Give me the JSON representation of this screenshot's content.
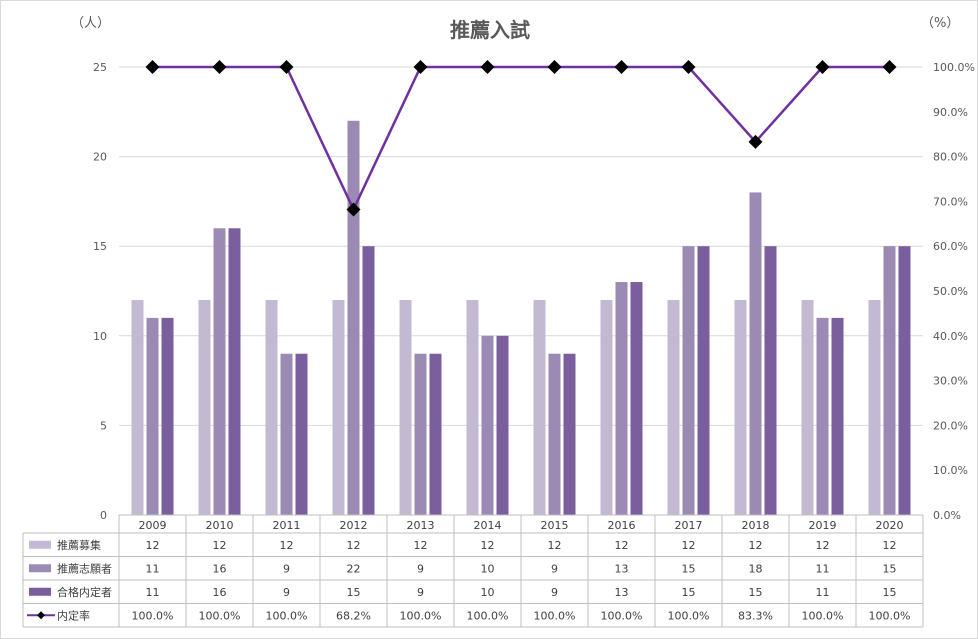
{
  "chart_data": {
    "type": "bar",
    "title": "推薦入試",
    "y_left_unit": "（人）",
    "y_right_unit": "（%）",
    "ylim": [
      0,
      25
    ],
    "y_ticks": [
      0,
      5,
      10,
      15,
      20,
      25
    ],
    "y2lim": [
      0,
      100
    ],
    "y2_ticks": [
      "0.0%",
      "10.0%",
      "20.0%",
      "30.0%",
      "40.0%",
      "50.0%",
      "60.0%",
      "70.0%",
      "80.0%",
      "90.0%",
      "100.0%"
    ],
    "categories": [
      "2009",
      "2010",
      "2011",
      "2012",
      "2013",
      "2014",
      "2015",
      "2016",
      "2017",
      "2018",
      "2019",
      "2020"
    ],
    "series": [
      {
        "name": "推薦募集",
        "type": "bar",
        "color": "#c4b9d3",
        "values": [
          12,
          12,
          12,
          12,
          12,
          12,
          12,
          12,
          12,
          12,
          12,
          12
        ]
      },
      {
        "name": "推薦志願者",
        "type": "bar",
        "color": "#9b8bb4",
        "values": [
          11,
          16,
          9,
          22,
          9,
          10,
          9,
          13,
          15,
          18,
          11,
          15
        ]
      },
      {
        "name": "合格内定者",
        "type": "bar",
        "color": "#7b5e9e",
        "values": [
          11,
          16,
          9,
          15,
          9,
          10,
          9,
          13,
          15,
          15,
          11,
          15
        ]
      },
      {
        "name": "内定率",
        "type": "line",
        "axis": "right",
        "color": "#7030a0",
        "marker_color": "#000000",
        "values": [
          100.0,
          100.0,
          100.0,
          68.2,
          100.0,
          100.0,
          100.0,
          100.0,
          100.0,
          83.3,
          100.0,
          100.0
        ]
      }
    ],
    "table": {
      "rows": [
        [
          "12",
          "12",
          "12",
          "12",
          "12",
          "12",
          "12",
          "12",
          "12",
          "12",
          "12",
          "12"
        ],
        [
          "11",
          "16",
          "9",
          "22",
          "9",
          "10",
          "9",
          "13",
          "15",
          "18",
          "11",
          "15"
        ],
        [
          "11",
          "16",
          "9",
          "15",
          "9",
          "10",
          "9",
          "13",
          "15",
          "15",
          "11",
          "15"
        ],
        [
          "100.0%",
          "100.0%",
          "100.0%",
          "68.2%",
          "100.0%",
          "100.0%",
          "100.0%",
          "100.0%",
          "100.0%",
          "83.3%",
          "100.0%",
          "100.0%"
        ]
      ]
    },
    "grid": true,
    "legend": "table"
  }
}
